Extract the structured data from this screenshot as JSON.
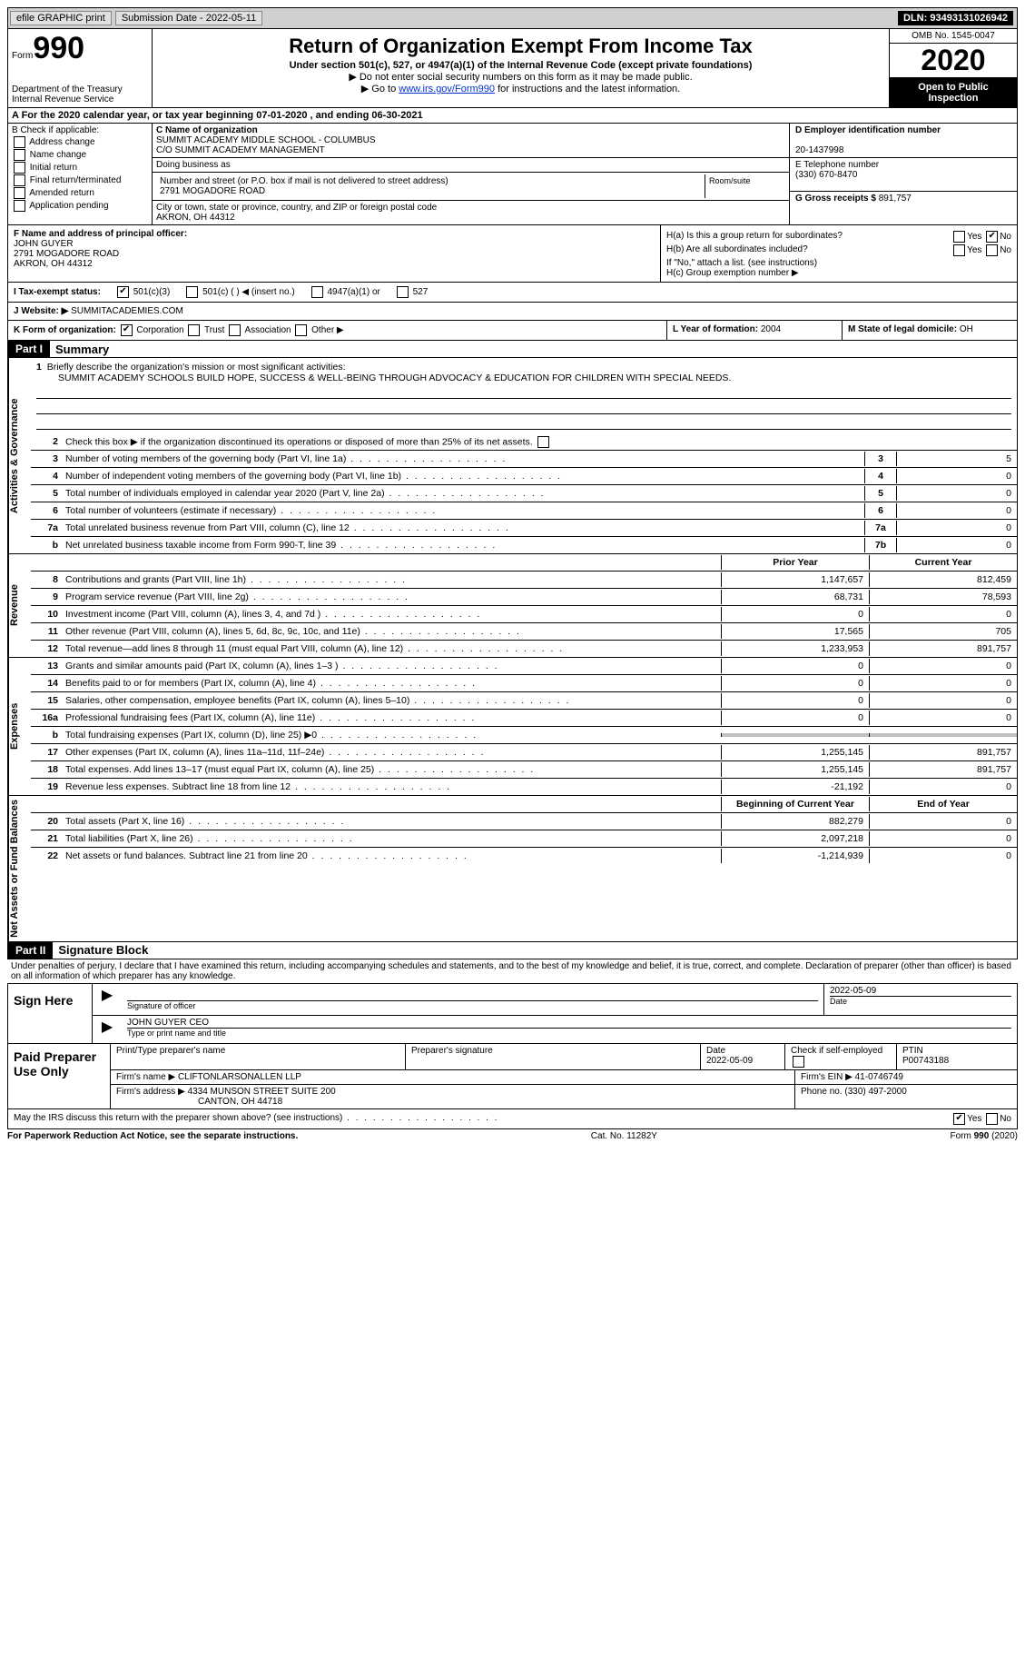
{
  "topbar": {
    "efile": "efile GRAPHIC print",
    "submission_label": "Submission Date - ",
    "submission_date": "2022-05-11",
    "dln_label": "DLN: ",
    "dln": "93493131026942"
  },
  "header": {
    "form_prefix": "Form",
    "form_number": "990",
    "dept": "Department of the Treasury\nInternal Revenue Service",
    "title": "Return of Organization Exempt From Income Tax",
    "subtitle": "Under section 501(c), 527, or 4947(a)(1) of the Internal Revenue Code (except private foundations)",
    "note1": "▶ Do not enter social security numbers on this form as it may be made public.",
    "note2_pre": "▶ Go to ",
    "note2_link": "www.irs.gov/Form990",
    "note2_post": " for instructions and the latest information.",
    "omb": "OMB No. 1545-0047",
    "year": "2020",
    "open": "Open to Public Inspection"
  },
  "line_a": {
    "pre": "A For the 2020 calendar year, or tax year beginning ",
    "begin": "07-01-2020",
    "mid": " , and ending ",
    "end": "06-30-2021"
  },
  "col_b": {
    "title": "B Check if applicable:",
    "opts": [
      "Address change",
      "Name change",
      "Initial return",
      "Final return/terminated",
      "Amended return",
      "Application pending"
    ]
  },
  "col_c": {
    "name_label": "C Name of organization",
    "name1": "SUMMIT ACADEMY MIDDLE SCHOOL - COLUMBUS",
    "name2": "C/O SUMMIT ACADEMY MANAGEMENT",
    "dba_label": "Doing business as",
    "addr_label": "Number and street (or P.O. box if mail is not delivered to street address)",
    "room_label": "Room/suite",
    "addr": "2791 MOGADORE ROAD",
    "city_label": "City or town, state or province, country, and ZIP or foreign postal code",
    "city": "AKRON, OH  44312"
  },
  "col_de": {
    "d_label": "D Employer identification number",
    "d_val": "20-1437998",
    "e_label": "E Telephone number",
    "e_val": "(330) 670-8470",
    "g_label": "G Gross receipts $ ",
    "g_val": "891,757"
  },
  "f": {
    "label": "F Name and address of principal officer:",
    "name": "JOHN GUYER",
    "addr": "2791 MOGADORE ROAD",
    "city": "AKRON, OH  44312"
  },
  "h": {
    "a_label": "H(a)  Is this a group return for subordinates?",
    "a_no_checked": true,
    "b_label": "H(b)  Are all subordinates included?",
    "b_note": "If \"No,\" attach a list. (see instructions)",
    "c_label": "H(c)  Group exemption number ▶"
  },
  "i": {
    "label": "I   Tax-exempt status:",
    "opts": [
      "501(c)(3)",
      "501(c) (  ) ◀ (insert no.)",
      "4947(a)(1) or",
      "527"
    ]
  },
  "j": {
    "label": "J   Website: ▶ ",
    "val": "SUMMITACADEMIES.COM"
  },
  "k": {
    "label": "K Form of organization:",
    "opts": [
      "Corporation",
      "Trust",
      "Association",
      "Other ▶"
    ]
  },
  "l": {
    "label": "L Year of formation: ",
    "val": "2004"
  },
  "m": {
    "label": "M State of legal domicile: ",
    "val": "OH"
  },
  "part1": {
    "num": "Part I",
    "title": "Summary",
    "line1_label": "Briefly describe the organization's mission or most significant activities:",
    "mission": "SUMMIT ACADEMY SCHOOLS BUILD HOPE, SUCCESS & WELL-BEING THROUGH ADVOCACY & EDUCATION FOR CHILDREN WITH SPECIAL NEEDS.",
    "line2": "Check this box ▶       if the organization discontinued its operations or disposed of more than 25% of its net assets.",
    "sidebars": [
      "Activities & Governance",
      "Revenue",
      "Expenses",
      "Net Assets or Fund Balances"
    ],
    "gov_lines": [
      {
        "n": "3",
        "label": "Number of voting members of the governing body (Part VI, line 1a)",
        "box": "3",
        "val": "5"
      },
      {
        "n": "4",
        "label": "Number of independent voting members of the governing body (Part VI, line 1b)",
        "box": "4",
        "val": "0"
      },
      {
        "n": "5",
        "label": "Total number of individuals employed in calendar year 2020 (Part V, line 2a)",
        "box": "5",
        "val": "0"
      },
      {
        "n": "6",
        "label": "Total number of volunteers (estimate if necessary)",
        "box": "6",
        "val": "0"
      },
      {
        "n": "7a",
        "label": "Total unrelated business revenue from Part VIII, column (C), line 12",
        "box": "7a",
        "val": "0"
      },
      {
        "n": "b",
        "label": "Net unrelated business taxable income from Form 990-T, line 39",
        "box": "7b",
        "val": "0"
      }
    ],
    "col_hdrs": {
      "prior": "Prior Year",
      "curr": "Current Year",
      "begin": "Beginning of Current Year",
      "end": "End of Year"
    },
    "rev_lines": [
      {
        "n": "8",
        "label": "Contributions and grants (Part VIII, line 1h)",
        "p": "1,147,657",
        "c": "812,459"
      },
      {
        "n": "9",
        "label": "Program service revenue (Part VIII, line 2g)",
        "p": "68,731",
        "c": "78,593"
      },
      {
        "n": "10",
        "label": "Investment income (Part VIII, column (A), lines 3, 4, and 7d )",
        "p": "0",
        "c": "0"
      },
      {
        "n": "11",
        "label": "Other revenue (Part VIII, column (A), lines 5, 6d, 8c, 9c, 10c, and 11e)",
        "p": "17,565",
        "c": "705"
      },
      {
        "n": "12",
        "label": "Total revenue—add lines 8 through 11 (must equal Part VIII, column (A), line 12)",
        "p": "1,233,953",
        "c": "891,757"
      }
    ],
    "exp_lines": [
      {
        "n": "13",
        "label": "Grants and similar amounts paid (Part IX, column (A), lines 1–3 )",
        "p": "0",
        "c": "0"
      },
      {
        "n": "14",
        "label": "Benefits paid to or for members (Part IX, column (A), line 4)",
        "p": "0",
        "c": "0"
      },
      {
        "n": "15",
        "label": "Salaries, other compensation, employee benefits (Part IX, column (A), lines 5–10)",
        "p": "0",
        "c": "0"
      },
      {
        "n": "16a",
        "label": "Professional fundraising fees (Part IX, column (A), line 11e)",
        "p": "0",
        "c": "0"
      },
      {
        "n": "b",
        "label": "Total fundraising expenses (Part IX, column (D), line 25) ▶0",
        "p": "",
        "c": "",
        "shaded": true
      },
      {
        "n": "17",
        "label": "Other expenses (Part IX, column (A), lines 11a–11d, 11f–24e)",
        "p": "1,255,145",
        "c": "891,757"
      },
      {
        "n": "18",
        "label": "Total expenses. Add lines 13–17 (must equal Part IX, column (A), line 25)",
        "p": "1,255,145",
        "c": "891,757"
      },
      {
        "n": "19",
        "label": "Revenue less expenses. Subtract line 18 from line 12",
        "p": "-21,192",
        "c": "0"
      }
    ],
    "net_lines": [
      {
        "n": "20",
        "label": "Total assets (Part X, line 16)",
        "p": "882,279",
        "c": "0"
      },
      {
        "n": "21",
        "label": "Total liabilities (Part X, line 26)",
        "p": "2,097,218",
        "c": "0"
      },
      {
        "n": "22",
        "label": "Net assets or fund balances. Subtract line 21 from line 20",
        "p": "-1,214,939",
        "c": "0"
      }
    ]
  },
  "part2": {
    "num": "Part II",
    "title": "Signature Block",
    "penalty": "Under penalties of perjury, I declare that I have examined this return, including accompanying schedules and statements, and to the best of my knowledge and belief, it is true, correct, and complete. Declaration of preparer (other than officer) is based on all information of which preparer has any knowledge."
  },
  "sign": {
    "left": "Sign Here",
    "sig_label": "Signature of officer",
    "date": "2022-05-09",
    "date_label": "Date",
    "name": "JOHN GUYER CEO",
    "name_label": "Type or print name and title"
  },
  "prep": {
    "left": "Paid Preparer Use Only",
    "hdr": [
      "Print/Type preparer's name",
      "Preparer's signature",
      "Date",
      "",
      "PTIN"
    ],
    "date": "2022-05-09",
    "check_label": "Check        if self-employed",
    "ptin": "P00743188",
    "firm_label": "Firm's name   ▶ ",
    "firm": "CLIFTONLARSONALLEN LLP",
    "ein_label": "Firm's EIN ▶ ",
    "ein": "41-0746749",
    "addr_label": "Firm's address ▶ ",
    "addr1": "4334 MUNSON STREET SUITE 200",
    "addr2": "CANTON, OH  44718",
    "phone_label": "Phone no. ",
    "phone": "(330) 497-2000"
  },
  "discuss": {
    "label": "May the IRS discuss this return with the preparer shown above? (see instructions)",
    "yes_checked": true
  },
  "footer": {
    "left": "For Paperwork Reduction Act Notice, see the separate instructions.",
    "mid": "Cat. No. 11282Y",
    "right": "Form 990 (2020)"
  }
}
